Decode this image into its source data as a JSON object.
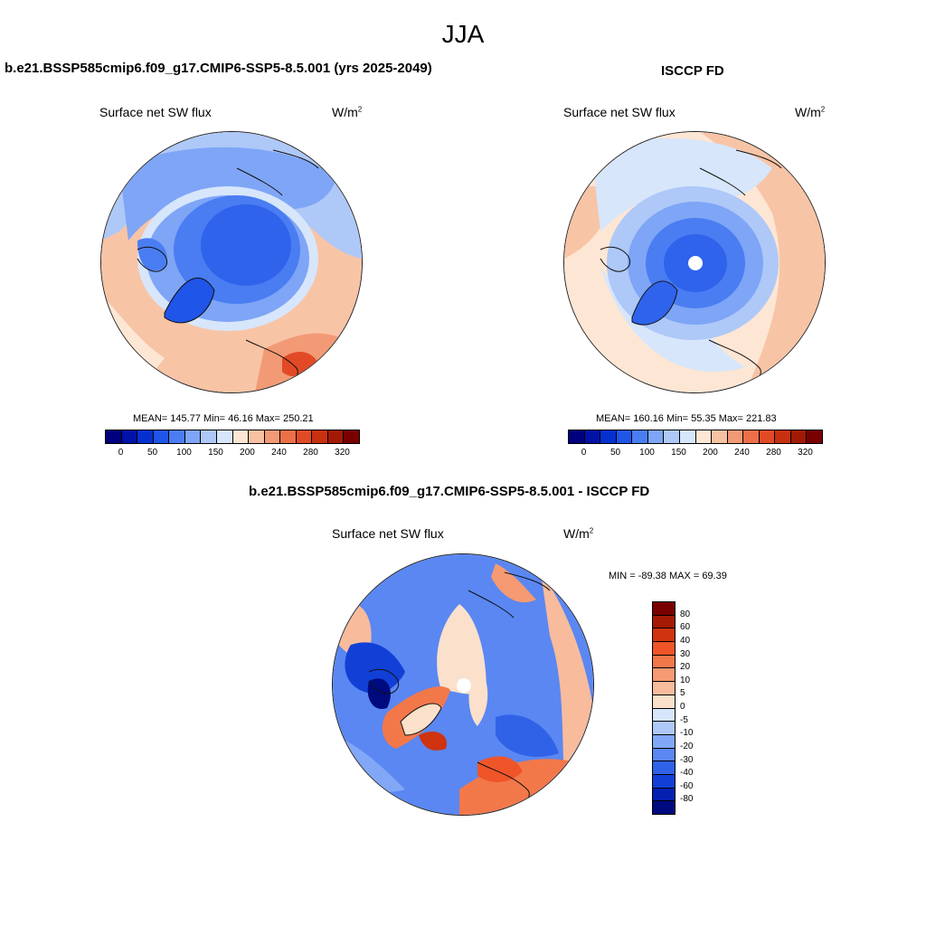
{
  "season": "JJA",
  "panel1": {
    "title": "b.e21.BSSP585cmip6.f09_g17.CMIP6-SSP5-8.5.001 (yrs 2025-2049)",
    "variable": "Surface net SW flux",
    "units": "W/m",
    "units_sup": "2",
    "stats": "MEAN= 145.77  Min=  46.16  Max= 250.21"
  },
  "panel2": {
    "title": "ISCCP FD",
    "variable": "Surface net SW flux",
    "units": "W/m",
    "units_sup": "2",
    "stats": "MEAN= 160.16  Min=  55.35  Max= 221.83"
  },
  "panel3": {
    "title": "b.e21.BSSP585cmip6.f09_g17.CMIP6-SSP5-8.5.001 - ISCCP FD",
    "variable": "Surface net SW flux",
    "units": "W/m",
    "units_sup": "2",
    "minmax": "MIN = -89.38 MAX =  69.39"
  },
  "colorbar_abs": {
    "colors": [
      "#00007f",
      "#0012a8",
      "#0530d0",
      "#1f55e8",
      "#4a7df2",
      "#7ea5f6",
      "#aec8f8",
      "#d7e6fb",
      "#fde6d4",
      "#f7c2a2",
      "#f29a75",
      "#ec6f48",
      "#e24a26",
      "#c8300f",
      "#a21a05",
      "#7a0000"
    ],
    "ticks": [
      "0",
      "50",
      "100",
      "150",
      "200",
      "240",
      "280",
      "320"
    ]
  },
  "colorbar_diff": {
    "colors": [
      "#7a0000",
      "#a41a05",
      "#cf3310",
      "#ef5528",
      "#f2784a",
      "#f59a72",
      "#f8bb9c",
      "#fbe0cb",
      "#d7e6fb",
      "#aec8f8",
      "#82a7f6",
      "#5a87f2",
      "#3062e8",
      "#1240d6",
      "#0520b0",
      "#000a7f"
    ],
    "ticks": [
      "80",
      "60",
      "40",
      "30",
      "20",
      "10",
      "5",
      "0",
      "-5",
      "-10",
      "-20",
      "-30",
      "-40",
      "-60",
      "-80"
    ]
  }
}
